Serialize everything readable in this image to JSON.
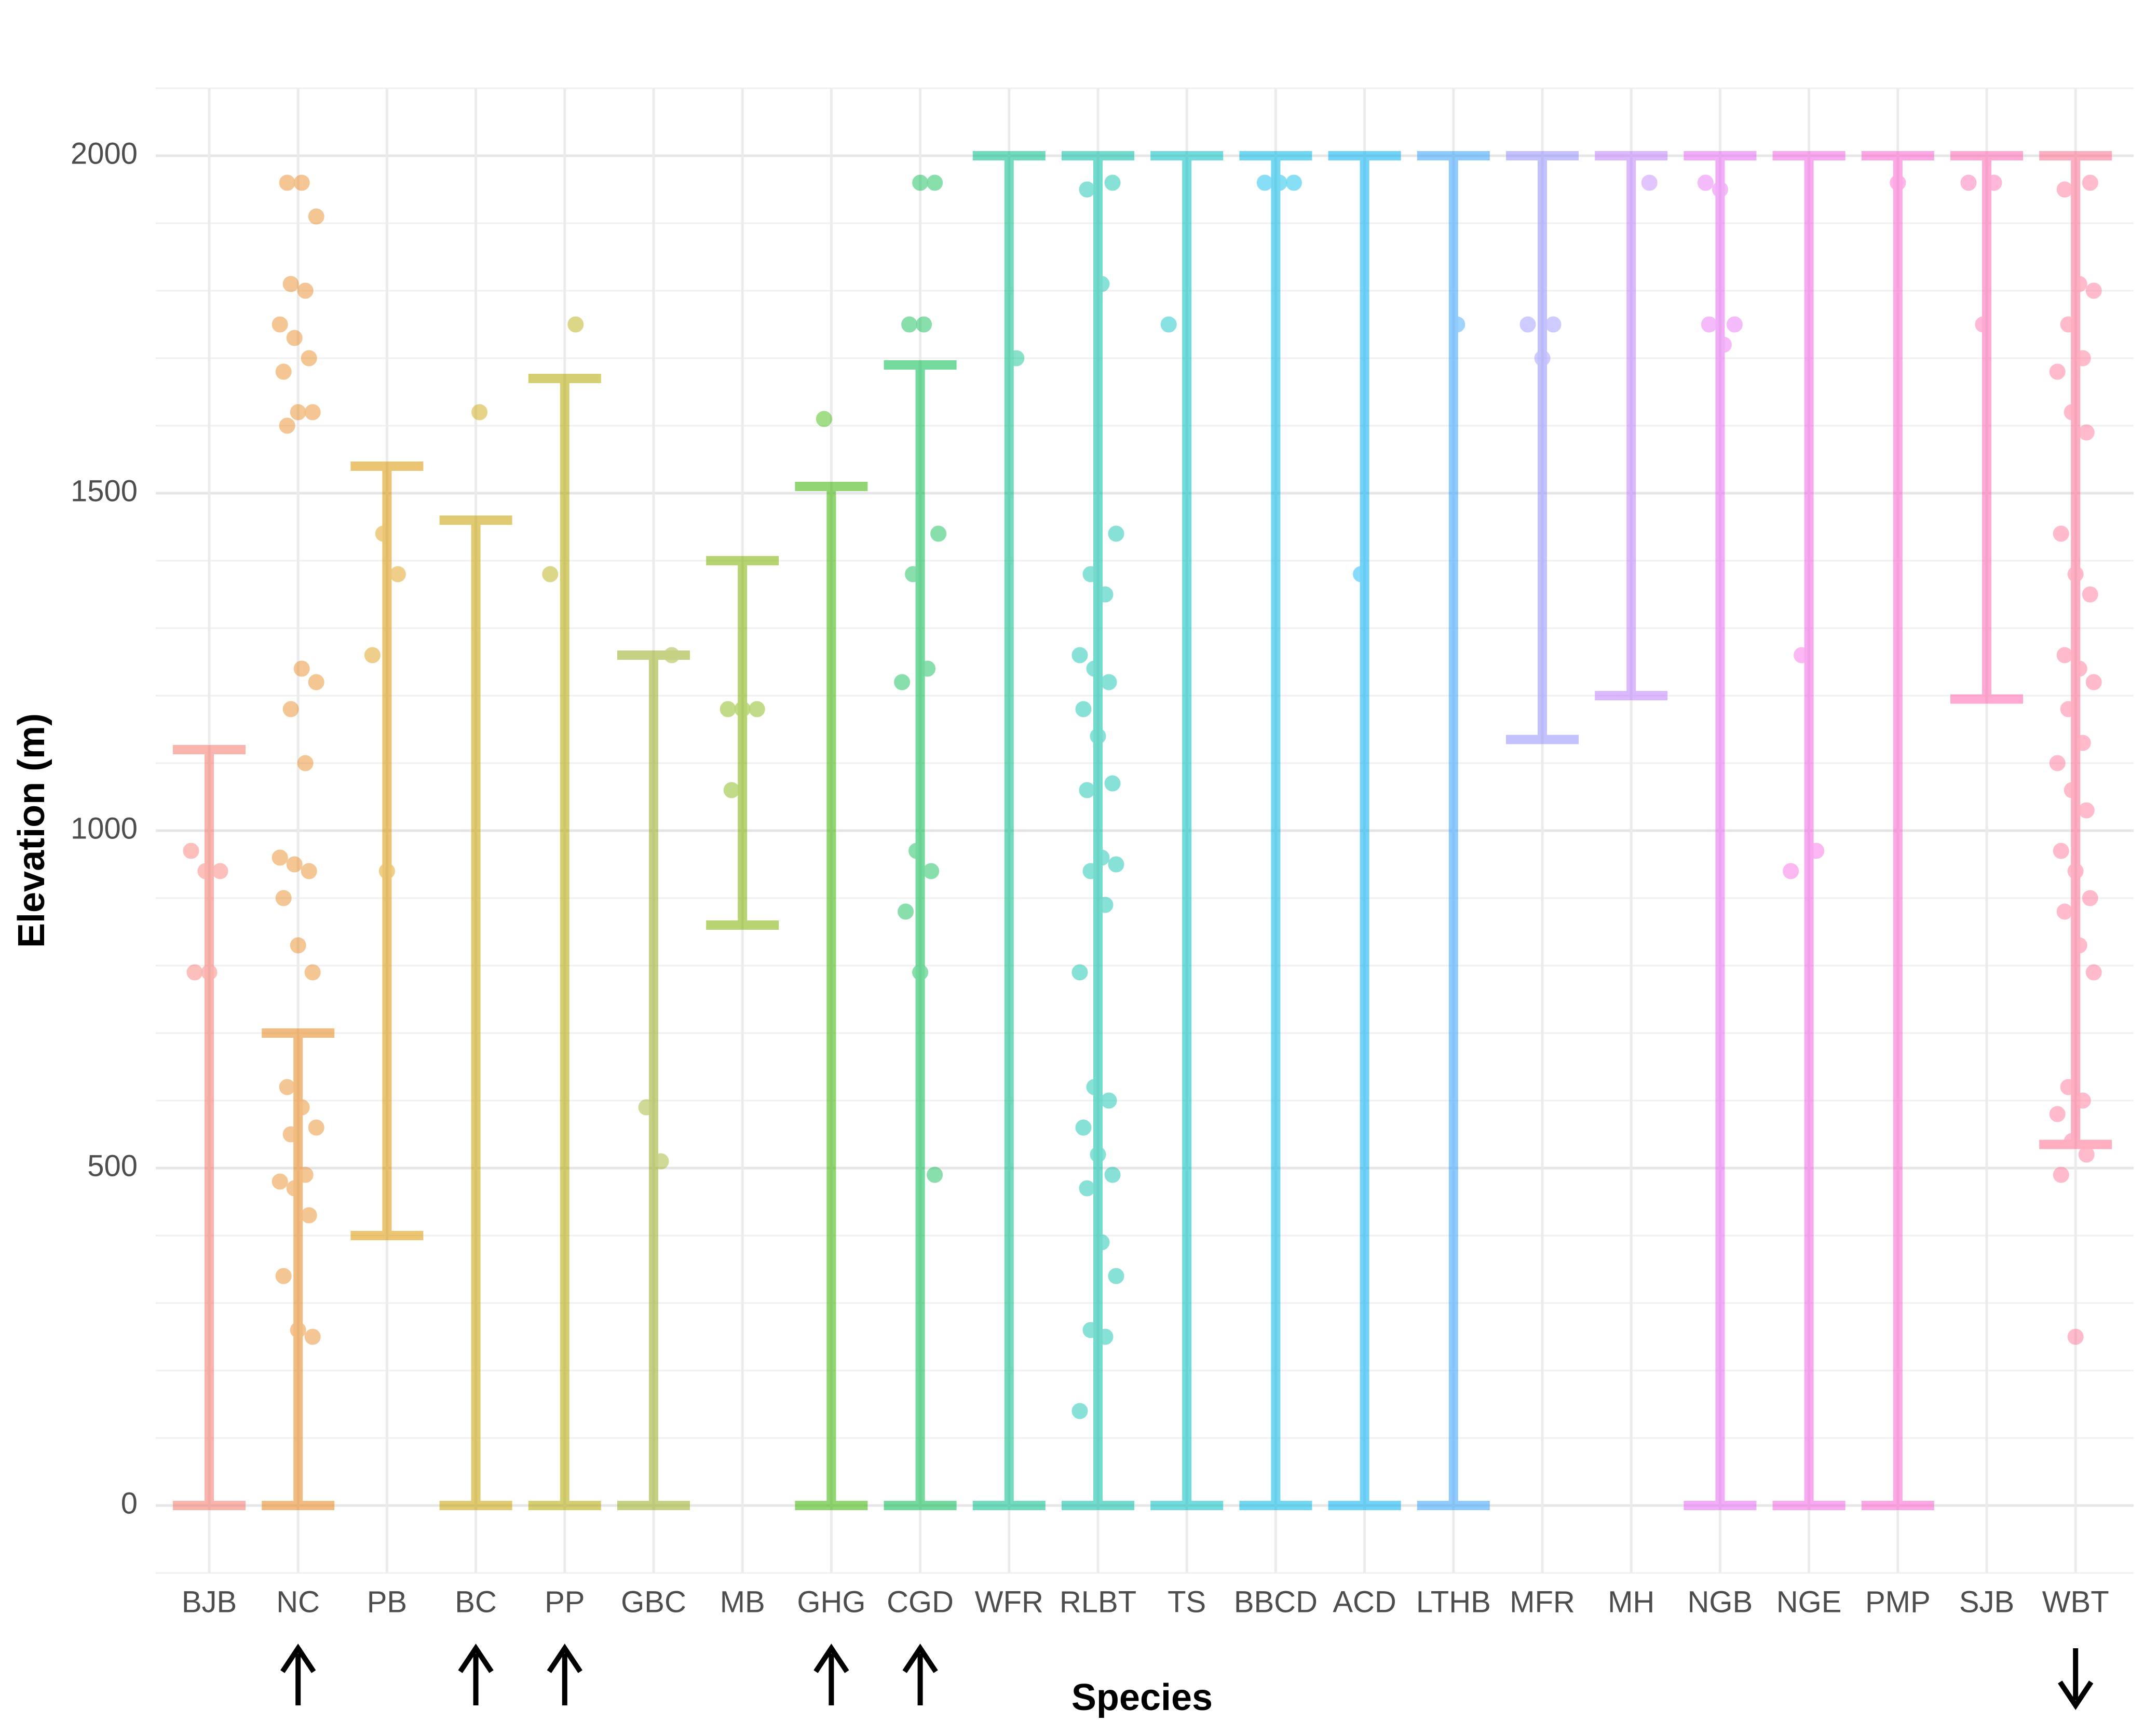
{
  "chart_data": {
    "type": "range",
    "y_label": "Elevation (m)",
    "x_label": "Species",
    "ylim": [
      -100,
      2100
    ],
    "yticks": [
      0,
      500,
      1000,
      1500,
      2000
    ],
    "minor_yticks": [
      -100,
      100,
      200,
      300,
      400,
      600,
      700,
      800,
      900,
      1100,
      1200,
      1300,
      1400,
      1600,
      1700,
      1800,
      1900,
      2100
    ],
    "grid": true,
    "ranges": [
      {
        "name": "BJB",
        "color": "#F8766D",
        "low": 0,
        "high": 1120,
        "points": [
          970,
          940,
          940,
          790,
          790
        ]
      },
      {
        "name": "NC",
        "color": "#E7861B",
        "low": 0,
        "high": 700,
        "arrow": "up",
        "points": [
          1960,
          1960,
          1910,
          1810,
          1800,
          1750,
          1730,
          1700,
          1680,
          1620,
          1620,
          1600,
          1240,
          1220,
          1180,
          1100,
          960,
          950,
          940,
          900,
          830,
          790,
          620,
          590,
          560,
          550,
          490,
          480,
          470,
          430,
          340,
          260,
          250
        ]
      },
      {
        "name": "PB",
        "color": "#DB9600",
        "low": 400,
        "high": 1540,
        "points": [
          1440,
          1380,
          1260,
          940
        ]
      },
      {
        "name": "BC",
        "color": "#C9A200",
        "low": 0,
        "high": 1460,
        "arrow": "up",
        "points": [
          1620
        ]
      },
      {
        "name": "PP",
        "color": "#B3A800",
        "low": 0,
        "high": 1670,
        "arrow": "up",
        "points": [
          1750,
          1380
        ]
      },
      {
        "name": "GBC",
        "color": "#9AAD1E",
        "low": 0,
        "high": 1260,
        "points": [
          1260,
          590,
          510
        ]
      },
      {
        "name": "MB",
        "color": "#7CB200",
        "low": 860,
        "high": 1400,
        "points": [
          1180,
          1180,
          1180,
          1060
        ]
      },
      {
        "name": "GHG",
        "color": "#39B600",
        "low": 0,
        "high": 1510,
        "arrow": "up",
        "points": [
          1610
        ]
      },
      {
        "name": "CGD",
        "color": "#00BB4E",
        "low": 0,
        "high": 1690,
        "arrow": "up",
        "points": [
          1960,
          1960,
          1750,
          1750,
          1440,
          1380,
          1240,
          1220,
          970,
          940,
          880,
          790,
          490
        ]
      },
      {
        "name": "WFR",
        "color": "#00BF8A",
        "low": 0,
        "high": 2000,
        "points": [
          1700
        ]
      },
      {
        "name": "RLBT",
        "color": "#00BFA6",
        "low": 0,
        "high": 2000,
        "points": [
          1960,
          1950,
          1810,
          1440,
          1380,
          1350,
          1260,
          1240,
          1220,
          1180,
          1140,
          1070,
          1060,
          960,
          950,
          940,
          890,
          790,
          620,
          600,
          560,
          520,
          490,
          470,
          390,
          340,
          260,
          250,
          140
        ]
      },
      {
        "name": "TS",
        "color": "#00BFC4",
        "low": 0,
        "high": 2000,
        "points": [
          1750
        ]
      },
      {
        "name": "BBCD",
        "color": "#00B8E7",
        "low": 0,
        "high": 2000,
        "points": [
          1960,
          1960,
          1960
        ]
      },
      {
        "name": "ACD",
        "color": "#00B0F6",
        "low": 0,
        "high": 2000,
        "points": [
          1380
        ]
      },
      {
        "name": "LTHB",
        "color": "#35A2FF",
        "low": 0,
        "high": 2000,
        "points": [
          1750
        ]
      },
      {
        "name": "MFR",
        "color": "#9590FF",
        "low": 1135,
        "high": 2000,
        "points": [
          1750,
          1750,
          1700
        ]
      },
      {
        "name": "MH",
        "color": "#C080FF",
        "low": 1200,
        "high": 2000,
        "points": [
          1960
        ]
      },
      {
        "name": "NGB",
        "color": "#E76BF3",
        "low": 0,
        "high": 2000,
        "points": [
          1960,
          1950,
          1750,
          1750,
          1720
        ]
      },
      {
        "name": "NGE",
        "color": "#F564E3",
        "low": 0,
        "high": 2000,
        "points": [
          1260,
          970,
          940
        ]
      },
      {
        "name": "PMP",
        "color": "#FD61D1",
        "low": 0,
        "high": 2000,
        "points": [
          1960
        ]
      },
      {
        "name": "SJB",
        "color": "#FF64B0",
        "low": 1195,
        "high": 2000,
        "points": [
          1960,
          1960,
          1750
        ]
      },
      {
        "name": "WBT",
        "color": "#FF6C91",
        "low": 535,
        "high": 2000,
        "arrow": "down",
        "points": [
          1960,
          1950,
          1810,
          1800,
          1750,
          1700,
          1680,
          1620,
          1590,
          1440,
          1380,
          1350,
          1260,
          1240,
          1220,
          1180,
          1130,
          1100,
          1060,
          1030,
          970,
          940,
          900,
          880,
          830,
          790,
          620,
          600,
          580,
          540,
          520,
          490,
          250
        ]
      }
    ]
  }
}
